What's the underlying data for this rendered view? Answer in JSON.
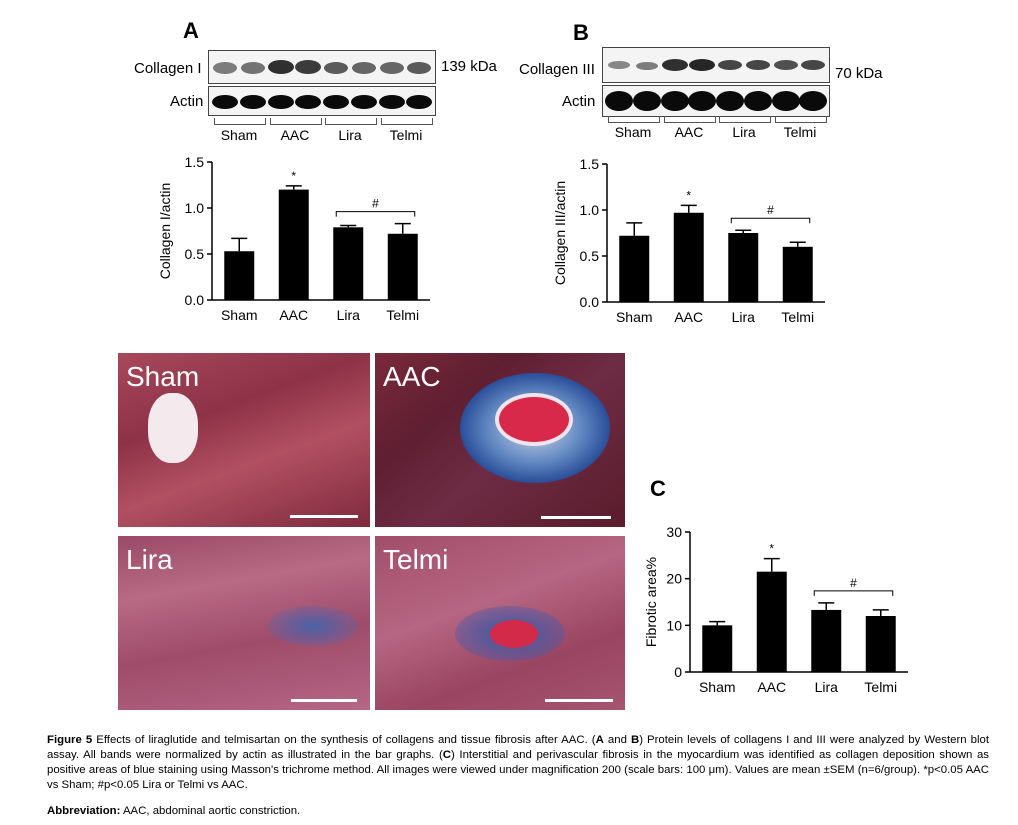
{
  "panels": {
    "a": {
      "letter": "A",
      "blot_top_label": "Collagen I",
      "blot_bottom_label": "Actin",
      "kda": "139 kDa",
      "groups": [
        "Sham",
        "AAC",
        "Lira",
        "Telmi"
      ]
    },
    "b": {
      "letter": "B",
      "blot_top_label": "Collagen III",
      "blot_bottom_label": "Actin",
      "kda": "70 kDa",
      "groups": [
        "Sham",
        "AAC",
        "Lira",
        "Telmi"
      ]
    },
    "c": {
      "letter": "C"
    }
  },
  "micrographs": [
    {
      "label": "Sham"
    },
    {
      "label": "AAC"
    },
    {
      "label": "Lira"
    },
    {
      "label": "Telmi"
    }
  ],
  "chart_data": [
    {
      "type": "bar",
      "categories": [
        "Sham",
        "AAC",
        "Lira",
        "Telmi"
      ],
      "values": [
        0.53,
        1.2,
        0.79,
        0.72
      ],
      "errors": [
        0.14,
        0.04,
        0.02,
        0.11
      ],
      "ylabel": "Collagen I/actin",
      "ylim": [
        0,
        1.5
      ],
      "yticks": [
        "0.0",
        "0.5",
        "1.0",
        "1.5"
      ],
      "annotations": [
        {
          "text": "*",
          "category": "AAC"
        },
        {
          "text": "#",
          "from": "Lira",
          "to": "Telmi"
        }
      ],
      "color": "#000000"
    },
    {
      "type": "bar",
      "categories": [
        "Sham",
        "AAC",
        "Lira",
        "Telmi"
      ],
      "values": [
        0.72,
        0.97,
        0.75,
        0.6
      ],
      "errors": [
        0.14,
        0.08,
        0.03,
        0.05
      ],
      "ylabel": "Collagen III/actin",
      "ylim": [
        0,
        1.5
      ],
      "yticks": [
        "0.0",
        "0.5",
        "1.0",
        "1.5"
      ],
      "annotations": [
        {
          "text": "*",
          "category": "AAC"
        },
        {
          "text": "#",
          "from": "Lira",
          "to": "Telmi"
        }
      ],
      "color": "#000000"
    },
    {
      "type": "bar",
      "categories": [
        "Sham",
        "AAC",
        "Lira",
        "Telmi"
      ],
      "values": [
        10,
        21.5,
        13.3,
        12
      ],
      "errors": [
        0.8,
        2.8,
        1.5,
        1.3
      ],
      "ylabel": "Fibrotic area%",
      "ylim": [
        0,
        30
      ],
      "yticks": [
        "0",
        "10",
        "20",
        "30"
      ],
      "annotations": [
        {
          "text": "*",
          "category": "AAC"
        },
        {
          "text": "#",
          "from": "Lira",
          "to": "Telmi"
        }
      ],
      "color": "#000000"
    }
  ],
  "caption": {
    "figure_label": "Figure 5",
    "text1": " Effects of liraglutide and telmisartan on the synthesis of collagens and tissue fibrosis after AAC. (",
    "a": "A",
    "text2": " and ",
    "b": "B",
    "text3": ") Protein levels of collagens I and III were analyzed by Western blot assay. All bands were normalized by actin as illustrated in the bar graphs. (",
    "c": "C",
    "text4": ") Interstitial and perivascular fibrosis in the myocardium was identified as collagen deposition shown as positive areas of blue staining using Masson's trichrome method. All images were viewed under magnification 200 (scale bars: 100 μm). Values are mean ±SEM (n=6/group). *p<0.05 AAC vs Sham; #p<0.05 Lira or Telmi vs AAC.",
    "abbr_label": "Abbreviation:",
    "abbr_text": " AAC, abdominal aortic constriction."
  }
}
